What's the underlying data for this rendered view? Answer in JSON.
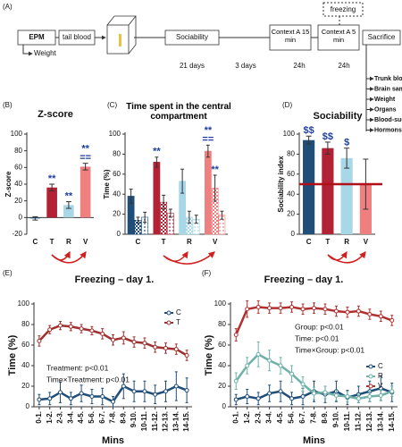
{
  "diagram": {
    "panel": "(A)",
    "boxes": [
      "EPM",
      "tail blood",
      "Sociability",
      "Context A 15 min",
      "Context A 5 min",
      "Sacrifice"
    ],
    "weight": "Weight",
    "freezing": "freezing",
    "intervals": [
      "21 days",
      "3 days",
      "24h",
      "24h"
    ],
    "outcomes": [
      "Trunk blood",
      "Brain samples",
      "Weight",
      "Organs",
      "Blood-sugar",
      "Hormons"
    ]
  },
  "chart_data": [
    {
      "type": "bar",
      "panel": "(B)",
      "title": "Z-score",
      "ylabel": "Z-score",
      "categories": [
        "C",
        "T",
        "R",
        "V"
      ],
      "values": [
        -1,
        36,
        15,
        61
      ],
      "errors": [
        2,
        4,
        4,
        4
      ],
      "colors": [
        "#1f4e79",
        "#b22234",
        "#a8d8e8",
        "#f08080"
      ],
      "annotations": [
        null,
        "**",
        "**",
        "**"
      ],
      "annotations2": [
        null,
        null,
        null,
        "=="
      ],
      "annotation_color": "#1f3ea0",
      "ylim": [
        -20,
        100
      ],
      "yticks": [
        -20,
        0,
        20,
        40,
        60,
        80,
        100
      ]
    },
    {
      "type": "bar",
      "panel": "(C)",
      "title": "Time spent in the central compartment",
      "ylabel": "Time (%)",
      "categories": [
        "C",
        "T",
        "R",
        "V"
      ],
      "colors": [
        "#1f4e79",
        "#b22234",
        "#a8d8e8",
        "#f08080"
      ],
      "series": [
        {
          "pattern": "solid",
          "values": [
            38,
            72,
            53,
            83
          ],
          "errors": [
            7,
            5,
            12,
            6
          ],
          "annotations": [
            null,
            "**",
            null,
            "**"
          ],
          "annotations2": [
            null,
            null,
            null,
            "=="
          ]
        },
        {
          "pattern": "checker",
          "values": [
            14,
            32,
            17,
            46
          ],
          "errors": [
            3,
            7,
            6,
            13
          ],
          "annotations": [
            null,
            null,
            null,
            "**"
          ]
        },
        {
          "pattern": "dots",
          "values": [
            17,
            21,
            15,
            19
          ],
          "errors": [
            5,
            4,
            4,
            4
          ]
        }
      ],
      "annotation_color": "#1f3ea0",
      "ylim": [
        0,
        100
      ],
      "yticks": [
        0,
        20,
        40,
        60,
        80,
        100
      ]
    },
    {
      "type": "bar",
      "panel": "(D)",
      "title": "Sociability",
      "ylabel": "Sociability index",
      "categories": [
        "C",
        "T",
        "R",
        "V"
      ],
      "values": [
        94,
        86,
        76,
        50
      ],
      "errors": [
        4,
        6,
        10,
        25
      ],
      "colors": [
        "#1f4e79",
        "#b22234",
        "#a8d8e8",
        "#f08080"
      ],
      "annotations": [
        "$$",
        "$$",
        "$",
        null
      ],
      "annotation_color": "#1f3ea0",
      "hline": 50,
      "hline_color": "#b0101a",
      "ylim": [
        0,
        100
      ],
      "yticks": [
        0,
        20,
        40,
        60,
        80,
        100
      ]
    },
    {
      "type": "line",
      "panel": "(E)",
      "title": "Freezing – day 1.",
      "ylabel": "Time (%)",
      "xlabel": "Mins",
      "categories": [
        "0-1.",
        "1-2.",
        "2-3.",
        "3-4.",
        "4-5.",
        "5-6.",
        "6-7.",
        "7-8.",
        "8-9.",
        "9-10.",
        "10-11.",
        "11-12.",
        "12-13.",
        "13-14.",
        "14-15."
      ],
      "series": [
        {
          "name": "C",
          "color": "#1f4e79",
          "values": [
            7,
            8,
            14,
            8,
            13,
            10,
            10,
            5,
            20,
            15,
            15,
            12,
            15,
            20,
            16
          ],
          "errors": [
            5,
            6,
            10,
            6,
            8,
            7,
            8,
            5,
            12,
            10,
            10,
            9,
            10,
            14,
            12
          ]
        },
        {
          "name": "T",
          "color": "#a0302f",
          "values": [
            64,
            75,
            79,
            78,
            76,
            74,
            71,
            65,
            67,
            63,
            62,
            58,
            57,
            56,
            50
          ],
          "errors": [
            5,
            4,
            4,
            4,
            4,
            4,
            5,
            5,
            6,
            5,
            5,
            5,
            5,
            5,
            5
          ]
        }
      ],
      "stats": [
        "Treatment: p<0.01",
        "Time×Treatment: p<0.01"
      ],
      "ylim": [
        0,
        100
      ],
      "yticks": [
        0,
        20,
        40,
        60,
        80,
        100
      ]
    },
    {
      "type": "line",
      "panel": "(F)",
      "title": "Freezing – day 1.",
      "ylabel": "Time (%)",
      "xlabel": "Mins",
      "categories": [
        "0-1.",
        "1-2.",
        "2-3.",
        "3-4.",
        "4-5.",
        "5-6.",
        "6-7.",
        "7-8.",
        "8-9.",
        "9-10.",
        "10-11.",
        "11-12.",
        "12-13.",
        "13-14.",
        "14-15."
      ],
      "series": [
        {
          "name": "C",
          "color": "#1f4e79",
          "values": [
            7,
            10,
            8,
            13,
            15,
            8,
            10,
            15,
            12,
            15,
            9,
            12,
            15,
            18,
            14
          ],
          "errors": [
            5,
            7,
            6,
            8,
            10,
            6,
            8,
            10,
            8,
            10,
            7,
            8,
            10,
            12,
            9
          ]
        },
        {
          "name": "R",
          "color": "#6fb0a8",
          "values": [
            25,
            40,
            51,
            45,
            40,
            32,
            22,
            13,
            14,
            11,
            10,
            8,
            10,
            11,
            15
          ],
          "errors": [
            8,
            8,
            12,
            10,
            8,
            8,
            7,
            6,
            6,
            5,
            5,
            4,
            5,
            5,
            5
          ]
        },
        {
          "name": "V",
          "color": "#b0302f",
          "values": [
            70,
            95,
            97,
            96,
            96,
            97,
            95,
            96,
            95,
            93,
            92,
            93,
            90,
            88,
            84
          ],
          "errors": [
            6,
            8,
            6,
            5,
            5,
            5,
            5,
            5,
            5,
            5,
            5,
            5,
            5,
            5,
            5
          ]
        }
      ],
      "stats": [
        "Group: p<0.01",
        "Time: p<0.01",
        "Time×Group: p<0.01"
      ],
      "ylim": [
        0,
        100
      ],
      "yticks": [
        0,
        20,
        40,
        60,
        80,
        100
      ]
    }
  ]
}
